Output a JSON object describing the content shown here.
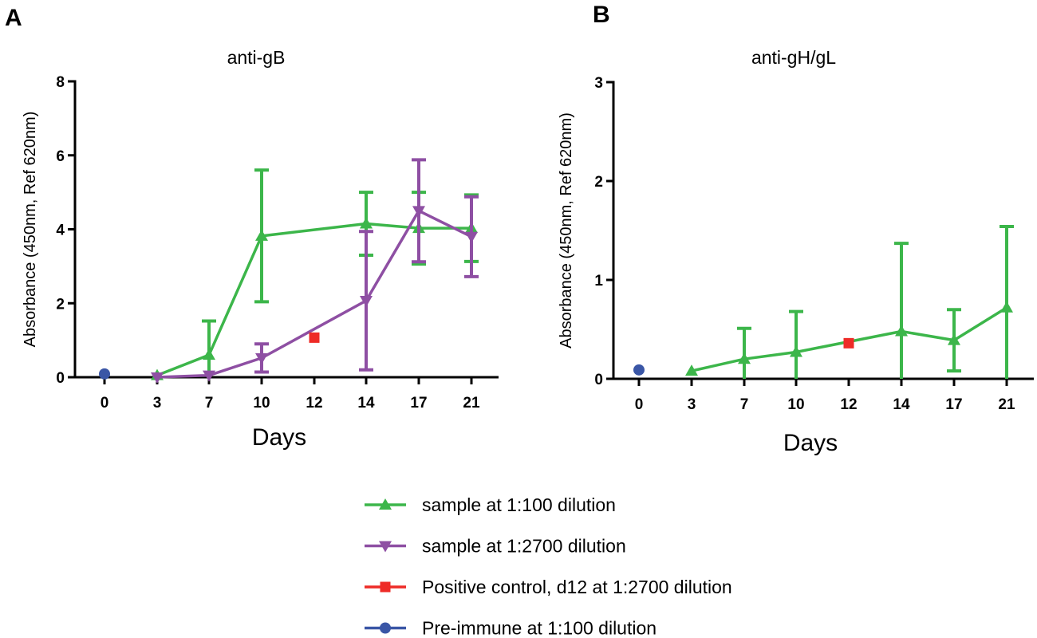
{
  "legend": [
    {
      "label": "sample at 1:100 dilution",
      "color": "#3cb64a",
      "marker": "triangle-up"
    },
    {
      "label": "sample at 1:2700 dilution",
      "color": "#8e4fa3",
      "marker": "triangle-down"
    },
    {
      "label": "Positive control, d12 at 1:2700 dilution",
      "color": "#ee2b27",
      "marker": "square"
    },
    {
      "label": "Pre-immune at 1:100 dilution",
      "color": "#3a56a6",
      "marker": "circle"
    }
  ],
  "chart_data": [
    {
      "panel": "A",
      "type": "line",
      "title": "anti-gB",
      "xlabel": "Days",
      "ylabel": "Absorbance (450nm, Ref 620nm)",
      "x_categories": [
        "0",
        "3",
        "7",
        "10",
        "12",
        "14",
        "17",
        "21"
      ],
      "ylim": [
        0,
        8
      ],
      "yticks": [
        "0",
        "2",
        "4",
        "6",
        "8"
      ],
      "grid": false,
      "series": [
        {
          "name": "sample at 1:100 dilution",
          "color": "#3cb64a",
          "marker": "triangle-up",
          "x": [
            "3",
            "7",
            "10",
            "14",
            "17",
            "21"
          ],
          "y": [
            0.05,
            0.6,
            3.82,
            4.15,
            4.03,
            4.03
          ],
          "err": [
            0,
            0.92,
            1.78,
            0.85,
            0.97,
            0.9
          ]
        },
        {
          "name": "sample at 1:2700 dilution",
          "color": "#8e4fa3",
          "marker": "triangle-down",
          "x": [
            "3",
            "7",
            "10",
            "14",
            "17",
            "21"
          ],
          "y": [
            0.0,
            0.05,
            0.52,
            2.07,
            4.5,
            3.8
          ],
          "err": [
            0,
            0,
            0.38,
            1.87,
            1.38,
            1.08
          ]
        },
        {
          "name": "Positive control, d12 at 1:2700 dilution",
          "color": "#ee2b27",
          "marker": "square",
          "x": [
            "12"
          ],
          "y": [
            1.07
          ],
          "err": [
            0
          ]
        },
        {
          "name": "Pre-immune at 1:100 dilution",
          "color": "#3a56a6",
          "marker": "circle",
          "x": [
            "0"
          ],
          "y": [
            0.09
          ],
          "err": [
            0
          ]
        }
      ]
    },
    {
      "panel": "B",
      "type": "line",
      "title": "anti-gH/gL",
      "xlabel": "Days",
      "ylabel": "Absorbance (450nm, Ref 620nm)",
      "x_categories": [
        "0",
        "3",
        "7",
        "10",
        "12",
        "14",
        "17",
        "21"
      ],
      "ylim": [
        0,
        3
      ],
      "yticks": [
        "0",
        "1",
        "2",
        "3"
      ],
      "grid": false,
      "series": [
        {
          "name": "sample at 1:100 dilution",
          "color": "#3cb64a",
          "marker": "triangle-up",
          "x": [
            "3",
            "7",
            "10",
            "14",
            "17",
            "21"
          ],
          "y": [
            0.08,
            0.2,
            0.27,
            0.48,
            0.39,
            0.72
          ],
          "err": [
            0,
            0.31,
            0.41,
            0.89,
            0.31,
            0.82
          ]
        },
        {
          "name": "Positive control, d12 at 1:2700 dilution",
          "color": "#ee2b27",
          "marker": "square",
          "x": [
            "12"
          ],
          "y": [
            0.36
          ],
          "err": [
            0
          ]
        },
        {
          "name": "Pre-immune at 1:100 dilution",
          "color": "#3a56a6",
          "marker": "circle",
          "x": [
            "0"
          ],
          "y": [
            0.09
          ],
          "err": [
            0
          ]
        }
      ]
    }
  ]
}
